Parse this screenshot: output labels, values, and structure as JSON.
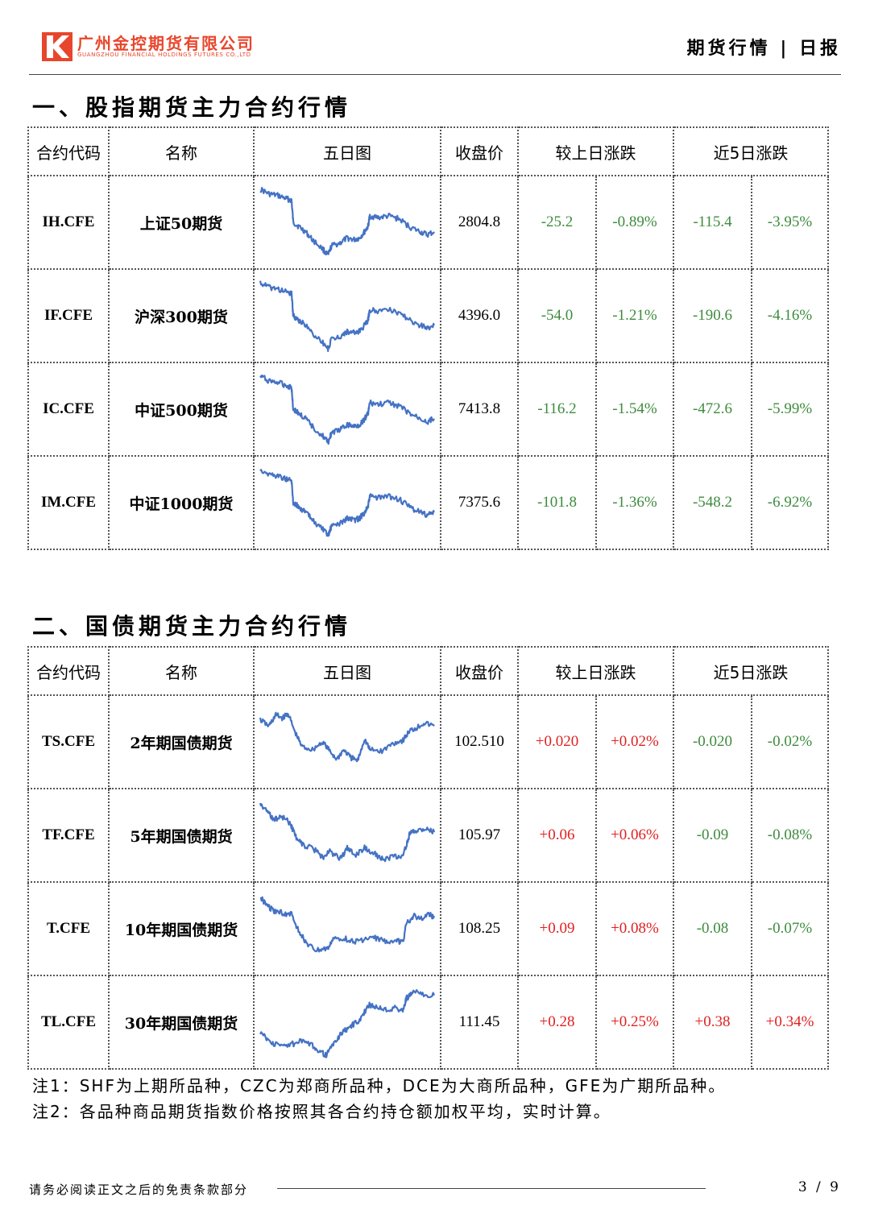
{
  "header": {
    "company_cn": "广州金控期货有限公司",
    "company_en": "GUANGZHOU FINANCIAL HOLDINGS FUTURES CO.,LTD",
    "report_title": "期货行情 | 日报",
    "logo_icon": "k-logo-icon",
    "brand_color": "#e8462c"
  },
  "columns": {
    "code": "合约代码",
    "name": "名称",
    "chart": "五日图",
    "close": "收盘价",
    "daily": "较上日涨跌",
    "five_day": "近5日涨跌"
  },
  "colors": {
    "up": "#e02020",
    "down": "#3d8b3d",
    "line": "#4472c4"
  },
  "sections": [
    {
      "title": "一、股指期货主力合约行情",
      "rows": [
        {
          "code": "IH.CFE",
          "name": "上证50期货",
          "close": "2804.8",
          "d_chg": "-25.2",
          "d_pct": "-0.89%",
          "w_chg": "-115.4",
          "w_pct": "-3.95%",
          "d_dir": "neg",
          "w_dir": "neg"
        },
        {
          "code": "IF.CFE",
          "name": "沪深300期货",
          "close": "4396.0",
          "d_chg": "-54.0",
          "d_pct": "-1.21%",
          "w_chg": "-190.6",
          "w_pct": "-4.16%",
          "d_dir": "neg",
          "w_dir": "neg"
        },
        {
          "code": "IC.CFE",
          "name": "中证500期货",
          "close": "7413.8",
          "d_chg": "-116.2",
          "d_pct": "-1.54%",
          "w_chg": "-472.6",
          "w_pct": "-5.99%",
          "d_dir": "neg",
          "w_dir": "neg"
        },
        {
          "code": "IM.CFE",
          "name": "中证1000期货",
          "close": "7375.6",
          "d_chg": "-101.8",
          "d_pct": "-1.36%",
          "w_chg": "-548.2",
          "w_pct": "-6.92%",
          "d_dir": "neg",
          "w_dir": "neg"
        }
      ]
    },
    {
      "title": "二、国债期货主力合约行情",
      "rows": [
        {
          "code": "TS.CFE",
          "name": "2年期国债期货",
          "close": "102.510",
          "d_chg": "+0.020",
          "d_pct": "+0.02%",
          "w_chg": "-0.020",
          "w_pct": "-0.02%",
          "d_dir": "pos",
          "w_dir": "neg"
        },
        {
          "code": "TF.CFE",
          "name": "5年期国债期货",
          "close": "105.97",
          "d_chg": "+0.06",
          "d_pct": "+0.06%",
          "w_chg": "-0.09",
          "w_pct": "-0.08%",
          "d_dir": "pos",
          "w_dir": "neg"
        },
        {
          "code": "T.CFE",
          "name": "10年期国债期货",
          "close": "108.25",
          "d_chg": "+0.09",
          "d_pct": "+0.08%",
          "w_chg": "-0.08",
          "w_pct": "-0.07%",
          "d_dir": "pos",
          "w_dir": "neg"
        },
        {
          "code": "TL.CFE",
          "name": "30年期国债期货",
          "close": "111.45",
          "d_chg": "+0.28",
          "d_pct": "+0.25%",
          "w_chg": "+0.38",
          "w_pct": "+0.34%",
          "d_dir": "pos",
          "w_dir": "pos"
        }
      ]
    }
  ],
  "notes": [
    "注1：SHF为上期所品种，CZC为郑商所品种，DCE为大商所品种，GFE为广期所品种。",
    "注2：各品种商品期货指数价格按照其各合约持仓额加权平均，实时计算。"
  ],
  "footer": {
    "disclaimer": "请务必阅读正文之后的免责条款部分",
    "page": "3 / 9"
  }
}
